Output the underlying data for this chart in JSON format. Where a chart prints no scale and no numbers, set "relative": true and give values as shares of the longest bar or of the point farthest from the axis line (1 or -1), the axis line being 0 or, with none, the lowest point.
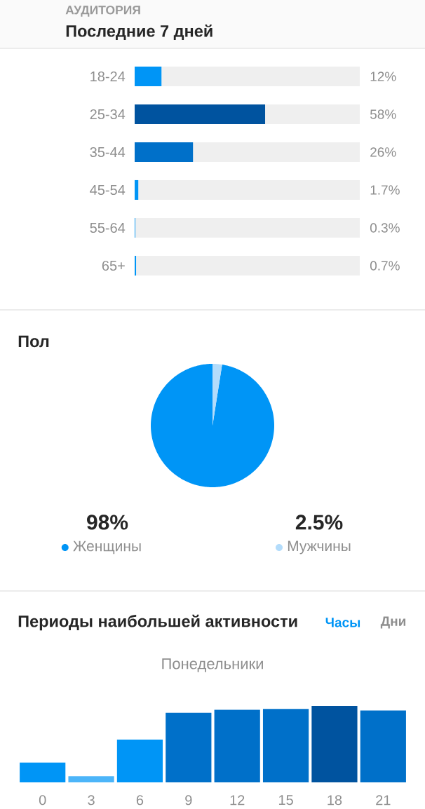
{
  "chart_data": [
    {
      "type": "bar",
      "orientation": "horizontal",
      "stacked": true,
      "title": "АУДИТОРИЯ",
      "subtitle": "Последние 7 дней",
      "categories": [
        "18-24",
        "25-34",
        "35-44",
        "45-54",
        "55-64",
        "65+"
      ],
      "series": [
        {
          "colors": [
            "#0095f6",
            "#00539f",
            "#0070c9",
            "#0095f6",
            "#0095f6",
            "#0095f6"
          ],
          "values": [
            12,
            58,
            26,
            1.7,
            0.3,
            0.7
          ],
          "value_labels": [
            "12%",
            "58%",
            "26%",
            "1.7%",
            "0.3%",
            "0.7%"
          ]
        },
        {
          "color": "#efefef",
          "values": [
            88,
            42,
            74,
            98.3,
            99.7,
            99.3
          ]
        }
      ],
      "xlim": [
        0,
        100
      ],
      "tick_labels": "y"
    },
    {
      "type": "pie",
      "title": "Пол",
      "categories": [
        "Женщины",
        "Мужчины"
      ],
      "values": [
        98,
        2.5
      ],
      "colors": [
        "#0095f6",
        "#b3dcfb"
      ],
      "value_labels": [
        "98%",
        "2.5%"
      ],
      "legend": "bottom"
    },
    {
      "type": "bar",
      "title": "Периоды наибольшей активности",
      "subtitle": "Понедельники",
      "annotations": [
        "Часы",
        "Дни"
      ],
      "categories": [
        "0",
        "3",
        "6",
        "9",
        "12",
        "15",
        "18",
        "21"
      ],
      "values": [
        0.26,
        0.08,
        0.56,
        0.91,
        0.95,
        0.96,
        1,
        0.94
      ],
      "colors": [
        "#0095f6",
        "#4cb5f9",
        "#0095f6",
        "#0070c9",
        "#0070c9",
        "#0070c9",
        "#00539f",
        "#0070c9"
      ],
      "relative": true
    }
  ]
}
